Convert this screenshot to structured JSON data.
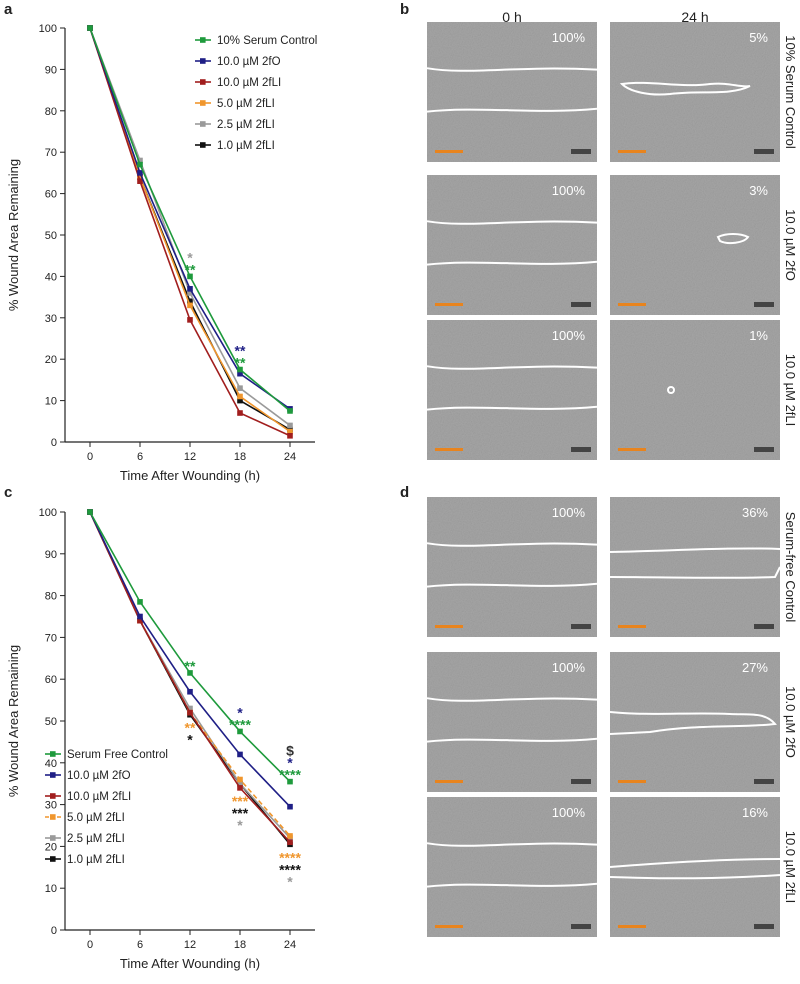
{
  "chart_data": [
    {
      "type": "line",
      "panel": "a",
      "xlabel": "Time After Wounding (h)",
      "ylabel": "% Wound Area Remaining",
      "x": [
        0,
        6,
        12,
        18,
        24
      ],
      "xlim": [
        -3,
        27
      ],
      "xticks": [
        0,
        6,
        12,
        18,
        24
      ],
      "ylim": [
        0,
        100
      ],
      "yticks": [
        0,
        10,
        20,
        30,
        40,
        50,
        60,
        70,
        80,
        90,
        100
      ],
      "legend": "upper center",
      "series": [
        {
          "name": "10% Serum Control",
          "color": "#1e9a3c",
          "values": [
            100,
            67,
            40,
            17.5,
            7.5
          ]
        },
        {
          "name": "10.0 µM 2fO",
          "color": "#1f1f86",
          "values": [
            100,
            65,
            37,
            16.5,
            8
          ]
        },
        {
          "name": "10.0 µM 2fLI",
          "color": "#a11e1e",
          "values": [
            100,
            63,
            29.5,
            7,
            1.5
          ]
        },
        {
          "name": "5.0 µM 2fLI",
          "color": "#f0962d",
          "values": [
            100,
            64,
            33,
            11,
            2.5
          ]
        },
        {
          "name": "2.5 µM 2fLI",
          "color": "#9a9a9a",
          "values": [
            100,
            68,
            36,
            13,
            4
          ]
        },
        {
          "name": "1.0 µM 2fLI",
          "color": "#111111",
          "values": [
            100,
            64,
            34,
            10,
            3
          ]
        }
      ],
      "annotations": [
        {
          "x": 12,
          "side": "above",
          "text": "*",
          "color": "#9a9a9a"
        },
        {
          "x": 12,
          "side": "above",
          "text": "**",
          "color": "#1e9a3c"
        },
        {
          "x": 18,
          "side": "above",
          "text": "**",
          "color": "#1f1f86"
        },
        {
          "x": 18,
          "side": "above",
          "text": "**",
          "color": "#1e9a3c"
        }
      ]
    },
    {
      "type": "line",
      "panel": "c",
      "xlabel": "Time After Wounding (h)",
      "ylabel": "% Wound Area Remaining",
      "x": [
        0,
        6,
        12,
        18,
        24
      ],
      "xlim": [
        -3,
        27
      ],
      "xticks": [
        0,
        6,
        12,
        18,
        24
      ],
      "ylim": [
        0,
        100
      ],
      "yticks": [
        0,
        10,
        20,
        30,
        40,
        50,
        60,
        70,
        80,
        90,
        100
      ],
      "legend": "lower left",
      "series": [
        {
          "name": "Serum Free Control",
          "color": "#1e9a3c",
          "values": [
            100,
            78.5,
            61.5,
            47.5,
            35.5
          ]
        },
        {
          "name": "10.0 µM 2fO",
          "color": "#1f1f86",
          "values": [
            100,
            75,
            57,
            42,
            29.5
          ]
        },
        {
          "name": "10.0 µM 2fLI",
          "color": "#a11e1e",
          "values": [
            100,
            74,
            52,
            34,
            21
          ]
        },
        {
          "name": "5.0 µM 2fLI",
          "color": "#f0962d",
          "values": [
            100,
            74,
            52,
            36,
            22.5
          ],
          "dashed": true
        },
        {
          "name": "2.5 µM 2fLI",
          "color": "#9a9a9a",
          "values": [
            100,
            74,
            53,
            35,
            22
          ]
        },
        {
          "name": "1.0 µM 2fLI",
          "color": "#111111",
          "values": [
            100,
            74,
            51.5,
            35,
            20.5
          ]
        }
      ],
      "annotations": [
        {
          "x": 12,
          "side": "above",
          "text": "**",
          "color": "#1e9a3c"
        },
        {
          "x": 12,
          "side": "below",
          "text": "**",
          "color": "#f0962d"
        },
        {
          "x": 12,
          "side": "below",
          "text": "*",
          "color": "#111111"
        },
        {
          "x": 18,
          "side": "above",
          "text": "*",
          "color": "#1f1f86"
        },
        {
          "x": 18,
          "side": "above",
          "text": "****",
          "color": "#1e9a3c"
        },
        {
          "x": 18,
          "side": "below",
          "text": "***",
          "color": "#f0962d"
        },
        {
          "x": 18,
          "side": "below",
          "text": "***",
          "color": "#111111"
        },
        {
          "x": 18,
          "side": "below",
          "text": "*",
          "color": "#9a9a9a"
        },
        {
          "x": 24,
          "side": "above",
          "text": "$",
          "color": "#333333"
        },
        {
          "x": 24,
          "side": "above",
          "text": "*",
          "color": "#1f1f86"
        },
        {
          "x": 24,
          "side": "above",
          "text": "****",
          "color": "#1e9a3c"
        },
        {
          "x": 24,
          "side": "below",
          "text": "****",
          "color": "#f0962d"
        },
        {
          "x": 24,
          "side": "below",
          "text": "****",
          "color": "#111111"
        },
        {
          "x": 24,
          "side": "below",
          "text": "*",
          "color": "#9a9a9a"
        }
      ]
    }
  ],
  "image_panels": [
    {
      "panel": "b",
      "columns": [
        "0 h",
        "24 h"
      ],
      "rows": [
        {
          "name": "10% Serum Control",
          "percent": [
            "100%",
            "5%"
          ]
        },
        {
          "name": "10.0 µM 2fO",
          "percent": [
            "100%",
            "3%"
          ]
        },
        {
          "name": "10.0 µM 2fLI",
          "percent": [
            "100%",
            "1%"
          ]
        }
      ]
    },
    {
      "panel": "d",
      "rows": [
        {
          "name": "Serum-free Control",
          "percent": [
            "100%",
            "36%"
          ]
        },
        {
          "name": "10.0 µM 2fO",
          "percent": [
            "100%",
            "27%"
          ]
        },
        {
          "name": "10.0 µM 2fLI",
          "percent": [
            "100%",
            "16%"
          ]
        }
      ]
    }
  ]
}
